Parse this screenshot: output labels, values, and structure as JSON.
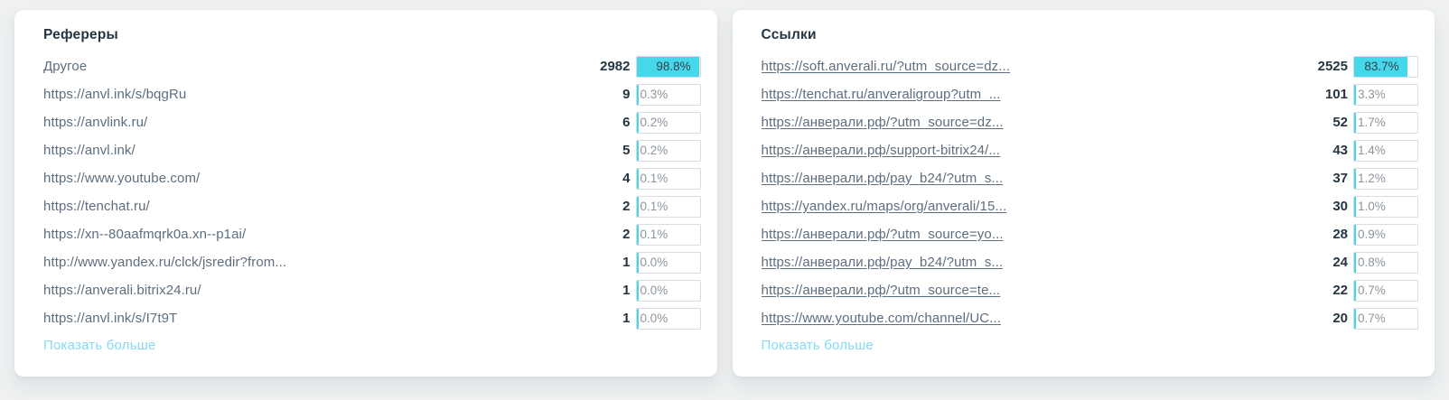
{
  "colors": {
    "accent_cyan": "#45d7ea",
    "page_background": "#eef0f1",
    "card_background": "#ffffff",
    "title_text": "#243642",
    "label_text": "#5d6e7e",
    "percent_text": "#8d959d",
    "show_more_link": "#87d9f6"
  },
  "panels": [
    {
      "title": "Рефереры",
      "link_style": "plain",
      "show_more_label": "Показать больше",
      "rows": [
        {
          "label": "Другое",
          "count": "2982",
          "percent_label": "98.8%",
          "percent_value": 98.8
        },
        {
          "label": "https://anvl.ink/s/bqgRu",
          "count": "9",
          "percent_label": "0.3%",
          "percent_value": 0.3
        },
        {
          "label": "https://anvlink.ru/",
          "count": "6",
          "percent_label": "0.2%",
          "percent_value": 0.2
        },
        {
          "label": "https://anvl.ink/",
          "count": "5",
          "percent_label": "0.2%",
          "percent_value": 0.2
        },
        {
          "label": "https://www.youtube.com/",
          "count": "4",
          "percent_label": "0.1%",
          "percent_value": 0.1
        },
        {
          "label": "https://tenchat.ru/",
          "count": "2",
          "percent_label": "0.1%",
          "percent_value": 0.1
        },
        {
          "label": "https://xn--80aafmqrk0a.xn--p1ai/",
          "count": "2",
          "percent_label": "0.1%",
          "percent_value": 0.1
        },
        {
          "label": "http://www.yandex.ru/clck/jsredir?from...",
          "count": "1",
          "percent_label": "0.0%",
          "percent_value": 0.0
        },
        {
          "label": "https://anverali.bitrix24.ru/",
          "count": "1",
          "percent_label": "0.0%",
          "percent_value": 0.0
        },
        {
          "label": "https://anvl.ink/s/I7t9T",
          "count": "1",
          "percent_label": "0.0%",
          "percent_value": 0.0
        }
      ]
    },
    {
      "title": "Ссылки",
      "link_style": "underline",
      "show_more_label": "Показать больше",
      "rows": [
        {
          "label": "https://soft.anverali.ru/?utm_source=dz...",
          "count": "2525",
          "percent_label": "83.7%",
          "percent_value": 83.7
        },
        {
          "label": "https://tenchat.ru/anveraligroup?utm_...",
          "count": "101",
          "percent_label": "3.3%",
          "percent_value": 3.3
        },
        {
          "label": "https://анверали.рф/?utm_source=dz...",
          "count": "52",
          "percent_label": "1.7%",
          "percent_value": 1.7
        },
        {
          "label": "https://анверали.рф/support-bitrix24/...",
          "count": "43",
          "percent_label": "1.4%",
          "percent_value": 1.4
        },
        {
          "label": "https://анверали.рф/pay_b24/?utm_s...",
          "count": "37",
          "percent_label": "1.2%",
          "percent_value": 1.2
        },
        {
          "label": "https://yandex.ru/maps/org/anverali/15...",
          "count": "30",
          "percent_label": "1.0%",
          "percent_value": 1.0
        },
        {
          "label": "https://анверали.рф/?utm_source=yo...",
          "count": "28",
          "percent_label": "0.9%",
          "percent_value": 0.9
        },
        {
          "label": "https://анверали.рф/pay_b24/?utm_s...",
          "count": "24",
          "percent_label": "0.8%",
          "percent_value": 0.8
        },
        {
          "label": "https://анверали.рф/?utm_source=te...",
          "count": "22",
          "percent_label": "0.7%",
          "percent_value": 0.7
        },
        {
          "label": "https://www.youtube.com/channel/UC...",
          "count": "20",
          "percent_label": "0.7%",
          "percent_value": 0.7
        }
      ]
    }
  ]
}
